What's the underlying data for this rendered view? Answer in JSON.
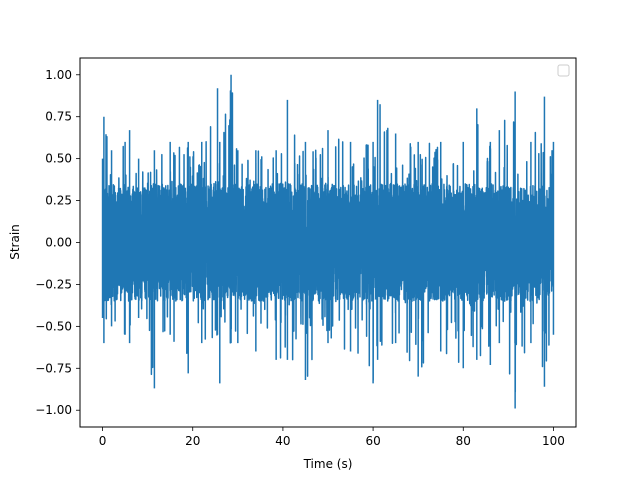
{
  "chart_data": {
    "type": "line",
    "title": "",
    "xlabel": "Time (s)",
    "ylabel": "Strain",
    "xlim": [
      -5,
      105
    ],
    "ylim": [
      -1.1,
      1.1
    ],
    "x_ticks": [
      0,
      20,
      40,
      60,
      80,
      100
    ],
    "y_ticks": [
      -1.0,
      -0.75,
      -0.5,
      -0.25,
      0.0,
      0.25,
      0.5,
      0.75,
      1.0
    ],
    "x_tick_labels": [
      "0",
      "20",
      "40",
      "60",
      "80",
      "100"
    ],
    "y_tick_labels": [
      "−1.00",
      "−0.75",
      "−0.50",
      "−0.25",
      "0.00",
      "0.25",
      "0.50",
      "0.75",
      "1.00"
    ],
    "grid": false,
    "legend": {
      "placement": "upper-right",
      "entries": []
    },
    "series": [
      {
        "color": "#1f77b4",
        "x_range": [
          0,
          100
        ],
        "values_description": "dense noise strain signal, mostly within ±0.5",
        "band": [
          {
            "x": 0,
            "lo": -0.45,
            "hi": 0.5
          },
          {
            "x": 0.3,
            "lo": -0.6,
            "hi": 0.75
          },
          {
            "x": 2,
            "lo": -0.5,
            "hi": 0.55
          },
          {
            "x": 5,
            "lo": -0.55,
            "hi": 0.6
          },
          {
            "x": 6,
            "lo": -0.6,
            "hi": 0.67
          },
          {
            "x": 8,
            "lo": -0.45,
            "hi": 0.5
          },
          {
            "x": 11.5,
            "lo": -0.87,
            "hi": 0.55
          },
          {
            "x": 15,
            "lo": -0.55,
            "hi": 0.6
          },
          {
            "x": 19,
            "lo": -0.78,
            "hi": 0.6
          },
          {
            "x": 22,
            "lo": -0.6,
            "hi": 0.6
          },
          {
            "x": 25.5,
            "lo": -0.55,
            "hi": 0.92
          },
          {
            "x": 26,
            "lo": -0.84,
            "hi": 0.6
          },
          {
            "x": 28.5,
            "lo": -0.6,
            "hi": 1.0
          },
          {
            "x": 30,
            "lo": -0.6,
            "hi": 0.55
          },
          {
            "x": 34,
            "lo": -0.65,
            "hi": 0.55
          },
          {
            "x": 38.5,
            "lo": -0.7,
            "hi": 0.55
          },
          {
            "x": 41,
            "lo": -0.7,
            "hi": 0.85
          },
          {
            "x": 45,
            "lo": -0.82,
            "hi": 0.6
          },
          {
            "x": 50,
            "lo": -0.6,
            "hi": 0.67
          },
          {
            "x": 55,
            "lo": -0.65,
            "hi": 0.6
          },
          {
            "x": 60,
            "lo": -0.84,
            "hi": 0.6
          },
          {
            "x": 61,
            "lo": -0.7,
            "hi": 0.85
          },
          {
            "x": 65,
            "lo": -0.6,
            "hi": 0.65
          },
          {
            "x": 70,
            "lo": -0.8,
            "hi": 0.6
          },
          {
            "x": 75,
            "lo": -0.65,
            "hi": 0.6
          },
          {
            "x": 80,
            "lo": -0.75,
            "hi": 0.6
          },
          {
            "x": 83,
            "lo": -0.7,
            "hi": 0.8
          },
          {
            "x": 86,
            "lo": -0.73,
            "hi": 0.6
          },
          {
            "x": 88,
            "lo": -0.6,
            "hi": 0.67
          },
          {
            "x": 91.5,
            "lo": -0.99,
            "hi": 0.9
          },
          {
            "x": 95,
            "lo": -0.6,
            "hi": 0.6
          },
          {
            "x": 98,
            "lo": -0.86,
            "hi": 0.87
          },
          {
            "x": 100,
            "lo": -0.55,
            "hi": 0.6
          }
        ]
      }
    ]
  }
}
